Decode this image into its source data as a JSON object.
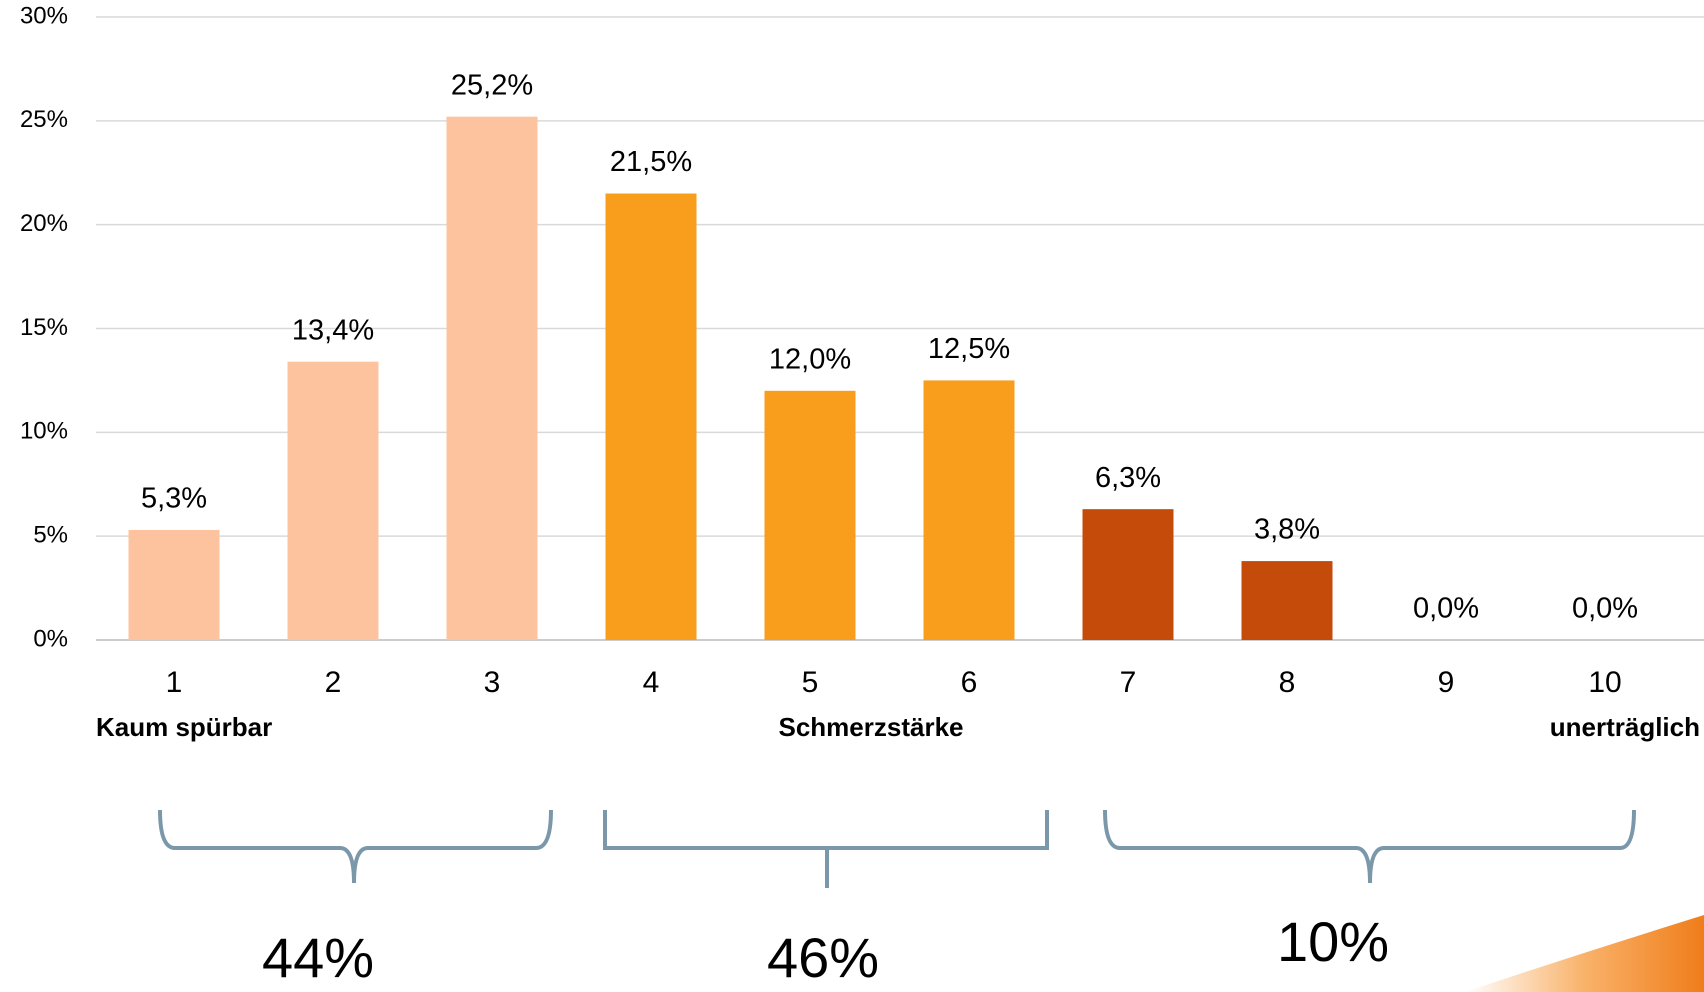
{
  "chart_data": {
    "type": "bar",
    "categories": [
      "1",
      "2",
      "3",
      "4",
      "5",
      "6",
      "7",
      "8",
      "9",
      "10"
    ],
    "values": [
      5.3,
      13.4,
      25.2,
      21.5,
      12.0,
      12.5,
      6.3,
      3.8,
      0.0,
      0.0
    ],
    "value_labels": [
      "5,3%",
      "13,4%",
      "25,2%",
      "21,5%",
      "12,0%",
      "12,5%",
      "6,3%",
      "3,8%",
      "0,0%",
      "0,0%"
    ],
    "colors": [
      "#fdc39e",
      "#fdc39e",
      "#fdc39e",
      "#f99d1c",
      "#f99d1c",
      "#f99d1c",
      "#c54b0a",
      "#c54b0a",
      "#c54b0a",
      "#c54b0a"
    ],
    "ylim": [
      0,
      30
    ],
    "yticks": [
      {
        "value": 0,
        "label": "0%"
      },
      {
        "value": 5,
        "label": "5%"
      },
      {
        "value": 10,
        "label": "10%"
      },
      {
        "value": 15,
        "label": "15%"
      },
      {
        "value": 20,
        "label": "20%"
      },
      {
        "value": 25,
        "label": "25%"
      },
      {
        "value": 30,
        "label": "30%"
      }
    ],
    "grid": true,
    "annotations": [
      "Kaum spürbar",
      "Schmerzstärke",
      "unerträglich",
      "44%",
      "46%",
      "10%"
    ]
  }
}
